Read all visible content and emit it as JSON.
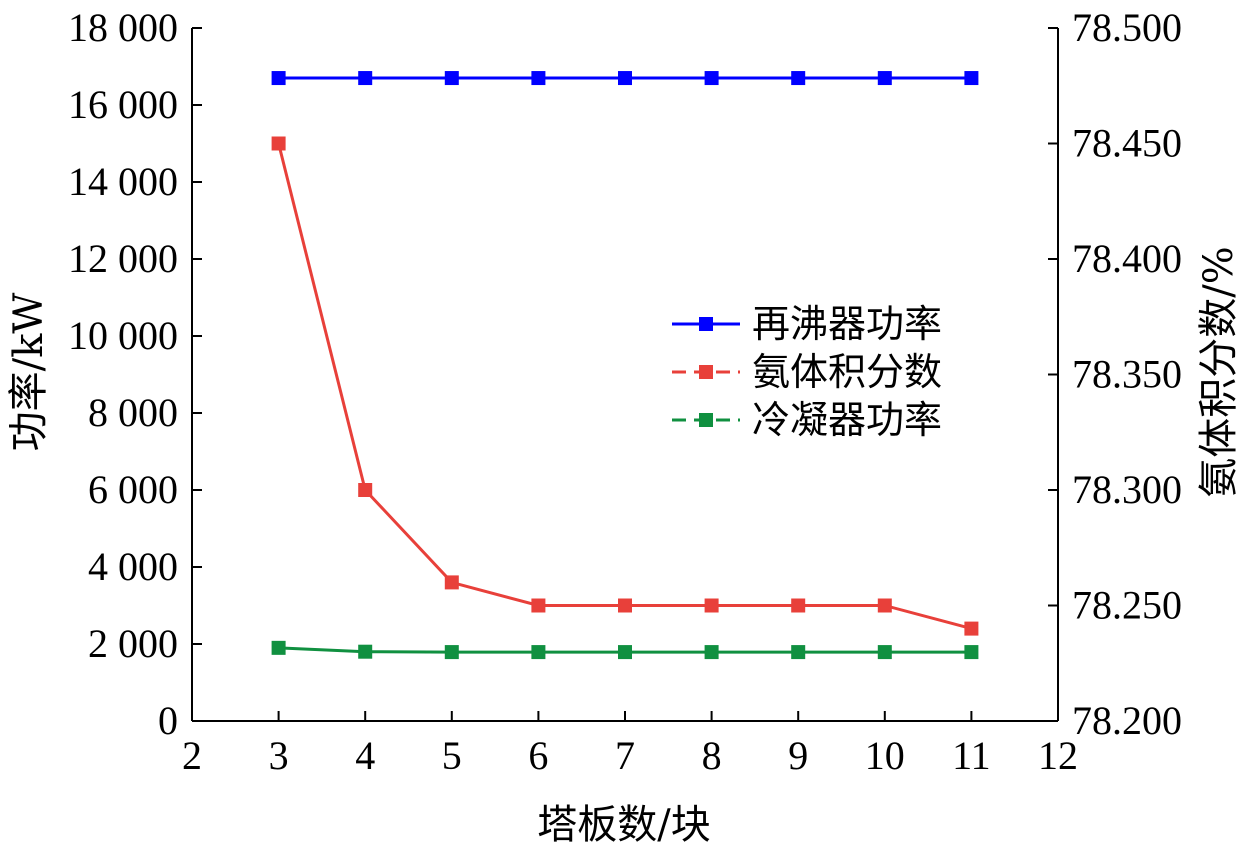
{
  "chart_data": {
    "type": "line",
    "title": "",
    "xlabel": "塔板数/块",
    "ylabel_left": "功率/kW",
    "ylabel_right": "氨体积分数/%",
    "x": [
      3,
      4,
      5,
      6,
      7,
      8,
      9,
      10,
      11
    ],
    "xlim": [
      2,
      12
    ],
    "x_ticks": [
      "2",
      "3",
      "4",
      "5",
      "6",
      "7",
      "8",
      "9",
      "10",
      "11",
      "12"
    ],
    "ylim_left": [
      0,
      18000
    ],
    "y_left_ticks": [
      "0",
      "2 000",
      "4 000",
      "6 000",
      "8 000",
      "10 000",
      "12 000",
      "14 000",
      "16 000",
      "18 000"
    ],
    "ylim_right": [
      78.2,
      78.5
    ],
    "y_right_ticks": [
      "78.200",
      "78.250",
      "78.300",
      "78.350",
      "78.400",
      "78.450",
      "78.500"
    ],
    "grid": false,
    "legend_position": "center-right",
    "series": [
      {
        "name": "再沸器功率",
        "axis": "left",
        "color": "#0000ff",
        "values": [
          16700,
          16700,
          16700,
          16700,
          16700,
          16700,
          16700,
          16700,
          16700
        ]
      },
      {
        "name": "氨体积分数",
        "axis": "right",
        "color": "#e8403a",
        "values": [
          78.45,
          78.3,
          78.26,
          78.25,
          78.25,
          78.25,
          78.25,
          78.25,
          78.24
        ]
      },
      {
        "name": "冷凝器功率",
        "axis": "left",
        "color": "#109040",
        "values": [
          1900,
          1800,
          1790,
          1790,
          1790,
          1790,
          1790,
          1790,
          1790
        ]
      }
    ]
  }
}
